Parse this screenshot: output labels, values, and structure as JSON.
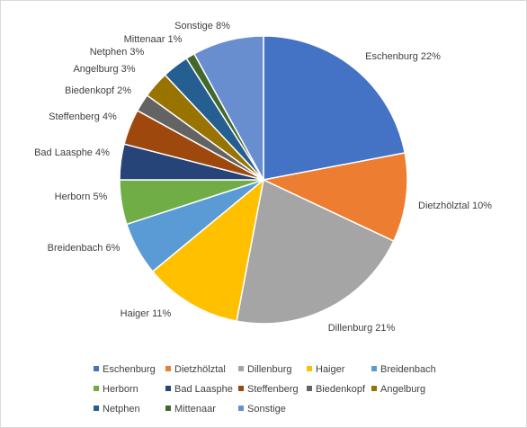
{
  "chart_data": {
    "type": "pie",
    "title": "",
    "slices": [
      {
        "name": "Eschenburg",
        "value": 22,
        "label": "Eschenburg 22%",
        "color": "#4472c4"
      },
      {
        "name": "Dietzhölztal",
        "value": 10,
        "label": "Dietzhölztal 10%",
        "color": "#ed7d31"
      },
      {
        "name": "Dillenburg",
        "value": 21,
        "label": "Dillenburg 21%",
        "color": "#a5a5a5"
      },
      {
        "name": "Haiger",
        "value": 11,
        "label": "Haiger 11%",
        "color": "#ffc000"
      },
      {
        "name": "Breidenbach",
        "value": 6,
        "label": "Breidenbach 6%",
        "color": "#5b9bd5"
      },
      {
        "name": "Herborn",
        "value": 5,
        "label": "Herborn 5%",
        "color": "#70ad47"
      },
      {
        "name": "Bad Laasphe",
        "value": 4,
        "label": "Bad Laasphe 4%",
        "color": "#264478"
      },
      {
        "name": "Steffenberg",
        "value": 4,
        "label": "Steffenberg 4%",
        "color": "#9e480e"
      },
      {
        "name": "Biedenkopf",
        "value": 2,
        "label": "Biedenkopf 2%",
        "color": "#636363"
      },
      {
        "name": "Angelburg",
        "value": 3,
        "label": "Angelburg 3%",
        "color": "#997300"
      },
      {
        "name": "Netphen",
        "value": 3,
        "label": "Netphen 3%",
        "color": "#255e91"
      },
      {
        "name": "Mittenaar",
        "value": 1,
        "label": "Mittenaar 1%",
        "color": "#43682b"
      },
      {
        "name": "Sonstige",
        "value": 8,
        "label": "Sonstige 8%",
        "color": "#698ed0"
      }
    ],
    "legend_position": "bottom"
  }
}
